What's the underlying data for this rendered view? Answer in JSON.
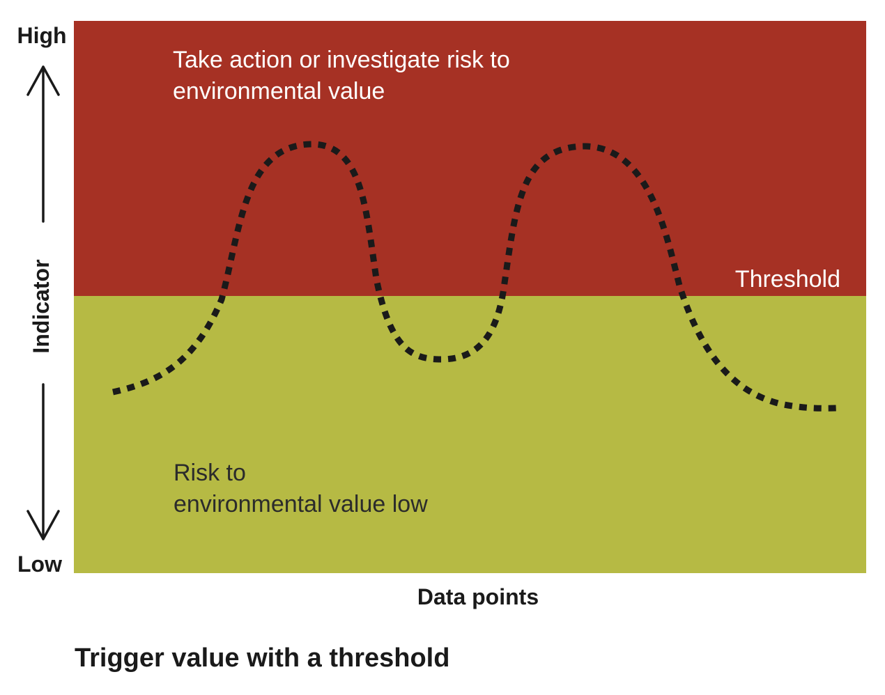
{
  "axis": {
    "high_label": "High",
    "low_label": "Low",
    "y_label": "Indicator",
    "x_label": "Data points"
  },
  "zones": {
    "upper_text_line1": "Take action or investigate risk to",
    "upper_text_line2": "environmental value",
    "lower_text_line1": "Risk to",
    "lower_text_line2": "environmental value low",
    "threshold_label": "Threshold"
  },
  "caption": "Trigger value with a threshold",
  "colors": {
    "upper_zone": "#a63124",
    "lower_zone": "#b6ba44",
    "line": "#1a1a1a",
    "label_light": "#ffffff",
    "label_dark": "#2b2b2b"
  },
  "icons": {
    "up_arrow": "arrow-up-icon",
    "down_arrow": "arrow-down-icon"
  }
}
